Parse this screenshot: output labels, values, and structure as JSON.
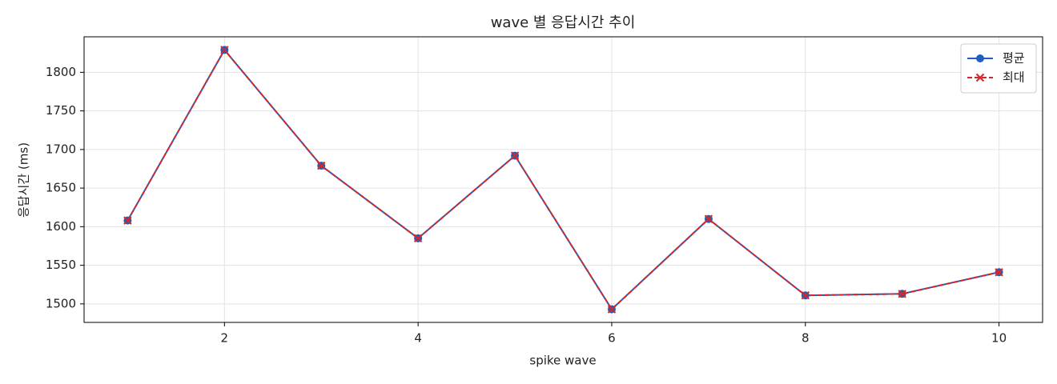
{
  "chart_data": {
    "type": "line",
    "title": "wave 별 응답시간 추이",
    "x_label": "spike wave",
    "y_label": "응답시간 (ms)",
    "x": [
      1,
      2,
      3,
      4,
      5,
      6,
      7,
      8,
      9,
      10
    ],
    "series": [
      {
        "name": "평균",
        "color": "#1f5fbf",
        "linestyle": "solid",
        "marker": "o",
        "values": [
          1608,
          1829,
          1679,
          1585,
          1692,
          1493,
          1610,
          1511,
          1513,
          1541
        ]
      },
      {
        "name": "최대",
        "color": "#d62728",
        "linestyle": "dashed",
        "marker": "x",
        "values": [
          1608,
          1829,
          1679,
          1585,
          1692,
          1493,
          1610,
          1511,
          1513,
          1541
        ]
      }
    ],
    "xlim": [
      0.55,
      10.45
    ],
    "ylim": [
      1476,
      1846
    ],
    "xticks": [
      2,
      4,
      6,
      8,
      10
    ],
    "yticks": [
      1500,
      1550,
      1600,
      1650,
      1700,
      1750,
      1800
    ],
    "grid": true,
    "legend": "upper right"
  }
}
